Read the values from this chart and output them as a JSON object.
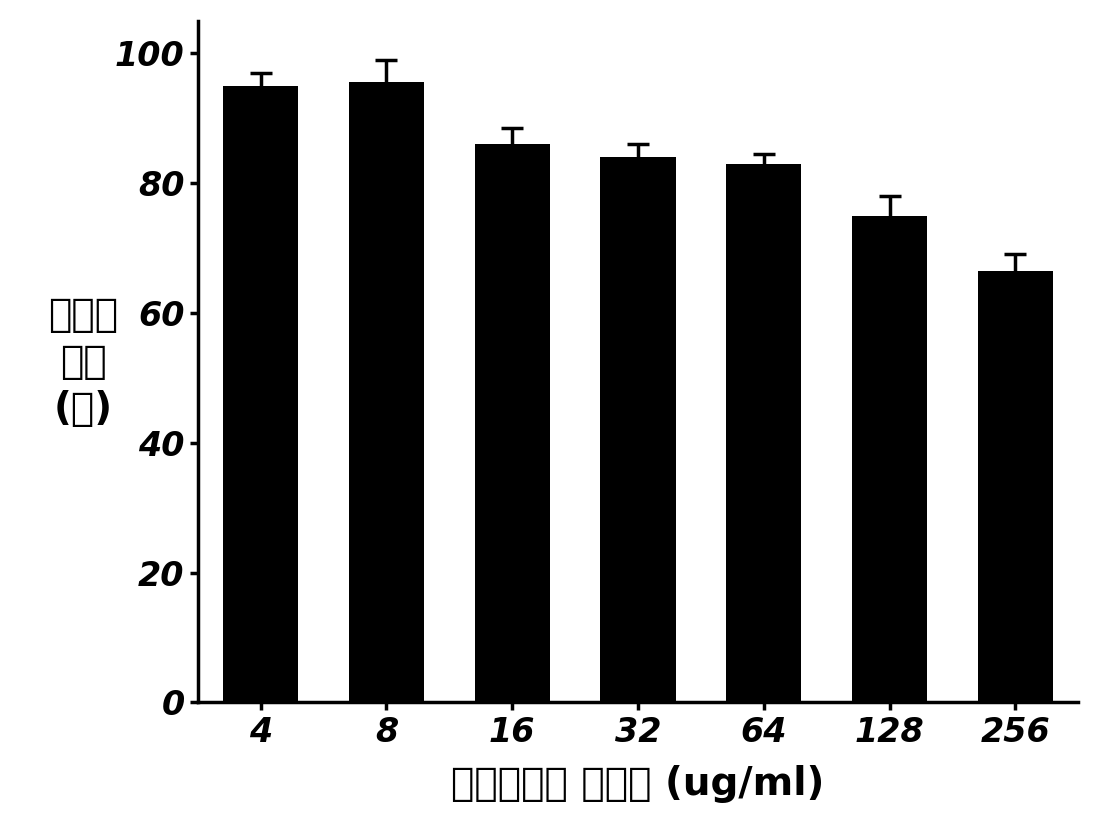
{
  "categories": [
    "4",
    "8",
    "16",
    "32",
    "64",
    "128",
    "256"
  ],
  "values": [
    95.0,
    95.5,
    86.0,
    84.0,
    83.0,
    75.0,
    66.5
  ],
  "errors": [
    2.0,
    3.5,
    2.5,
    2.0,
    1.5,
    3.0,
    2.5
  ],
  "bar_color": "#000000",
  "error_color": "#000000",
  "xlabel": "丝胶蛋白载 体浓度 (ug/ml)",
  "ylabel_lines": [
    "细胞存",
    "活率",
    "(％)"
  ],
  "ylim": [
    0,
    105
  ],
  "yticks": [
    0,
    20,
    40,
    60,
    80,
    100
  ],
  "background_color": "#ffffff",
  "tick_fontsize": 24,
  "label_fontsize": 28,
  "ylabel_fontsize": 28,
  "bar_width": 0.6,
  "linewidth": 2.5,
  "capsize": 8,
  "spine_linewidth": 2.5
}
